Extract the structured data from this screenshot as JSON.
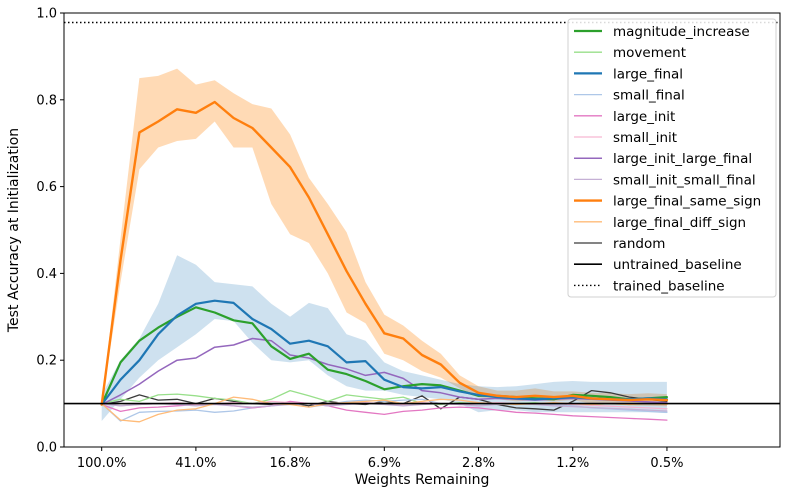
{
  "chart_data": {
    "type": "line",
    "xlabel": "Weights Remaining",
    "ylabel": "Test Accuracy at Initialization",
    "ylim": [
      0.0,
      1.0
    ],
    "yticks": [
      "0.0",
      "0.2",
      "0.4",
      "0.6",
      "0.8",
      "1.0"
    ],
    "x_tick_labels": [
      "100.0%",
      "41.0%",
      "16.8%",
      "6.9%",
      "2.8%",
      "1.2%",
      "0.5%"
    ],
    "x": [
      0,
      0.5,
      1.0,
      1.5,
      2.0,
      2.5,
      3.0,
      3.5,
      4.0,
      4.5,
      5.0,
      5.5,
      6.0,
      6.5,
      7.0,
      7.5,
      8.0,
      8.5,
      9.0,
      9.5,
      10.0,
      10.5,
      11.0,
      11.5,
      12.0,
      12.5,
      13.0,
      13.5,
      14.0,
      14.5,
      15.0
    ],
    "legend_position": "top-right",
    "series": [
      {
        "name": "magnitude_increase",
        "color": "#2ca02c",
        "width": 2.2,
        "values": [
          0.098,
          0.195,
          0.245,
          0.275,
          0.3,
          0.322,
          0.31,
          0.292,
          0.285,
          0.232,
          0.203,
          0.215,
          0.178,
          0.168,
          0.152,
          0.133,
          0.14,
          0.145,
          0.142,
          0.13,
          0.118,
          0.118,
          0.115,
          0.112,
          0.11,
          0.12,
          0.118,
          0.115,
          0.11,
          0.112,
          0.115
        ]
      },
      {
        "name": "movement",
        "color": "#98df8a",
        "width": 1.3,
        "values": [
          0.1,
          0.11,
          0.105,
          0.12,
          0.122,
          0.118,
          0.112,
          0.108,
          0.1,
          0.11,
          0.13,
          0.118,
          0.105,
          0.12,
          0.115,
          0.11,
          0.115,
          0.1,
          0.098,
          0.102,
          0.1,
          0.098,
          0.1,
          0.102,
          0.098,
          0.1,
          0.098,
          0.1,
          0.098,
          0.1,
          0.1
        ]
      },
      {
        "name": "large_final",
        "color": "#1f77b4",
        "width": 2.2,
        "values": [
          0.098,
          0.155,
          0.2,
          0.26,
          0.303,
          0.33,
          0.337,
          0.332,
          0.295,
          0.272,
          0.238,
          0.245,
          0.232,
          0.195,
          0.198,
          0.155,
          0.138,
          0.135,
          0.138,
          0.128,
          0.12,
          0.115,
          0.112,
          0.11,
          0.112,
          0.115,
          0.112,
          0.11,
          0.11,
          0.112,
          0.11
        ]
      },
      {
        "name": "small_final",
        "color": "#aec7e8",
        "width": 1.3,
        "values": [
          0.1,
          0.06,
          0.08,
          0.082,
          0.083,
          0.085,
          0.08,
          0.083,
          0.09,
          0.095,
          0.1,
          0.092,
          0.098,
          0.105,
          0.108,
          0.105,
          0.108,
          0.11,
          0.1,
          0.098,
          0.1,
          0.098,
          0.1,
          0.1,
          0.098,
          0.095,
          0.09,
          0.088,
          0.085,
          0.082,
          0.08
        ]
      },
      {
        "name": "large_init",
        "color": "#e377c2",
        "width": 1.3,
        "values": [
          0.098,
          0.082,
          0.09,
          0.092,
          0.095,
          0.098,
          0.1,
          0.095,
          0.09,
          0.095,
          0.105,
          0.1,
          0.095,
          0.085,
          0.08,
          0.075,
          0.082,
          0.085,
          0.09,
          0.092,
          0.09,
          0.085,
          0.08,
          0.078,
          0.075,
          0.072,
          0.07,
          0.068,
          0.066,
          0.064,
          0.062
        ]
      },
      {
        "name": "small_init",
        "color": "#f7b6d2",
        "width": 1.3,
        "values": [
          0.1,
          0.095,
          0.098,
          0.1,
          0.102,
          0.098,
          0.1,
          0.102,
          0.1,
          0.105,
          0.102,
          0.1,
          0.098,
          0.1,
          0.102,
          0.1,
          0.098,
          0.102,
          0.1,
          0.098,
          0.1,
          0.102,
          0.1,
          0.098,
          0.1,
          0.098,
          0.096,
          0.094,
          0.092,
          0.09,
          0.088
        ]
      },
      {
        "name": "large_init_large_final",
        "color": "#9467bd",
        "width": 1.5,
        "values": [
          0.098,
          0.12,
          0.145,
          0.175,
          0.2,
          0.205,
          0.23,
          0.235,
          0.25,
          0.245,
          0.212,
          0.205,
          0.19,
          0.18,
          0.165,
          0.172,
          0.158,
          0.13,
          0.125,
          0.115,
          0.11,
          0.112,
          0.11,
          0.108,
          0.11,
          0.112,
          0.11,
          0.108,
          0.106,
          0.104,
          0.102
        ]
      },
      {
        "name": "small_init_small_final",
        "color": "#c5b0d5",
        "width": 1.3,
        "values": [
          0.1,
          0.095,
          0.098,
          0.1,
          0.098,
          0.095,
          0.098,
          0.095,
          0.092,
          0.095,
          0.098,
          0.1,
          0.095,
          0.098,
          0.1,
          0.098,
          0.095,
          0.098,
          0.1,
          0.098,
          0.095,
          0.098,
          0.1,
          0.098,
          0.095,
          0.093,
          0.091,
          0.089,
          0.087,
          0.085,
          0.083
        ]
      },
      {
        "name": "large_final_same_sign",
        "color": "#ff7f0e",
        "width": 2.4,
        "values": [
          0.098,
          0.43,
          0.725,
          0.75,
          0.778,
          0.77,
          0.795,
          0.758,
          0.735,
          0.69,
          0.645,
          0.575,
          0.49,
          0.405,
          0.33,
          0.262,
          0.25,
          0.212,
          0.19,
          0.148,
          0.125,
          0.118,
          0.115,
          0.118,
          0.115,
          0.118,
          0.112,
          0.11,
          0.108,
          0.11,
          0.108
        ]
      },
      {
        "name": "large_final_diff_sign",
        "color": "#ffbb78",
        "width": 1.3,
        "values": [
          0.1,
          0.062,
          0.058,
          0.075,
          0.085,
          0.088,
          0.1,
          0.115,
          0.11,
          0.1,
          0.098,
          0.092,
          0.1,
          0.102,
          0.105,
          0.108,
          0.1,
          0.105,
          0.11,
          0.108,
          0.102,
          0.1,
          0.098,
          0.1,
          0.102,
          0.1,
          0.098,
          0.1,
          0.098,
          0.1,
          0.098
        ]
      },
      {
        "name": "random",
        "color": "#3a3a3a",
        "width": 1.3,
        "values": [
          0.098,
          0.105,
          0.12,
          0.108,
          0.11,
          0.1,
          0.112,
          0.105,
          0.1,
          0.098,
          0.1,
          0.095,
          0.105,
          0.1,
          0.098,
          0.105,
          0.1,
          0.118,
          0.088,
          0.115,
          0.11,
          0.098,
          0.09,
          0.088,
          0.085,
          0.105,
          0.13,
          0.125,
          0.115,
          0.11,
          0.105
        ]
      },
      {
        "name": "untrained_baseline",
        "color": "#000000",
        "width": 1.6,
        "values": [
          0.1,
          0.1,
          0.1,
          0.1,
          0.1,
          0.1,
          0.1,
          0.1,
          0.1,
          0.1,
          0.1,
          0.1,
          0.1,
          0.1,
          0.1,
          0.1,
          0.1,
          0.1,
          0.1,
          0.1,
          0.1,
          0.1,
          0.1,
          0.1,
          0.1,
          0.1,
          0.1,
          0.1,
          0.1,
          0.1,
          0.1
        ]
      },
      {
        "name": "trained_baseline",
        "color": "#000000",
        "width": 1.4,
        "dashed": true,
        "values": [
          0.978,
          0.978,
          0.978,
          0.978,
          0.978,
          0.978,
          0.978,
          0.978,
          0.978,
          0.978,
          0.978,
          0.978,
          0.978,
          0.978,
          0.978,
          0.978,
          0.978,
          0.978,
          0.978,
          0.978,
          0.978,
          0.978,
          0.978,
          0.978,
          0.978,
          0.978,
          0.978,
          0.978,
          0.978,
          0.978,
          0.978
        ]
      }
    ],
    "bands": [
      {
        "series": "large_final_same_sign",
        "color": "#ffbb78",
        "opacity": 0.55,
        "lower": [
          0.098,
          0.38,
          0.64,
          0.69,
          0.705,
          0.71,
          0.75,
          0.69,
          0.69,
          0.56,
          0.49,
          0.47,
          0.4,
          0.31,
          0.285,
          0.215,
          0.2,
          0.175,
          0.16,
          0.135,
          0.115,
          0.11,
          0.105,
          0.108,
          0.105,
          0.108,
          0.1,
          0.098,
          0.096,
          0.095,
          0.094
        ],
        "upper": [
          0.098,
          0.48,
          0.85,
          0.855,
          0.872,
          0.835,
          0.845,
          0.815,
          0.79,
          0.78,
          0.72,
          0.62,
          0.56,
          0.495,
          0.38,
          0.305,
          0.28,
          0.245,
          0.215,
          0.165,
          0.14,
          0.13,
          0.13,
          0.135,
          0.128,
          0.128,
          0.125,
          0.124,
          0.122,
          0.124,
          0.122
        ]
      },
      {
        "series": "large_final",
        "color": "#1f77b4",
        "opacity": 0.22,
        "lower": [
          0.06,
          0.11,
          0.16,
          0.2,
          0.23,
          0.26,
          0.295,
          0.29,
          0.24,
          0.2,
          0.195,
          0.2,
          0.165,
          0.14,
          0.13,
          0.13,
          0.12,
          0.115,
          0.11,
          0.1,
          0.08,
          0.085,
          0.085,
          0.08,
          0.08,
          0.08,
          0.08,
          0.08,
          0.08,
          0.08,
          0.078
        ],
        "upper": [
          0.12,
          0.2,
          0.25,
          0.33,
          0.442,
          0.42,
          0.38,
          0.375,
          0.37,
          0.33,
          0.3,
          0.332,
          0.32,
          0.26,
          0.245,
          0.195,
          0.175,
          0.165,
          0.155,
          0.145,
          0.14,
          0.138,
          0.14,
          0.145,
          0.15,
          0.152,
          0.15,
          0.15,
          0.15,
          0.15,
          0.15
        ]
      }
    ]
  }
}
